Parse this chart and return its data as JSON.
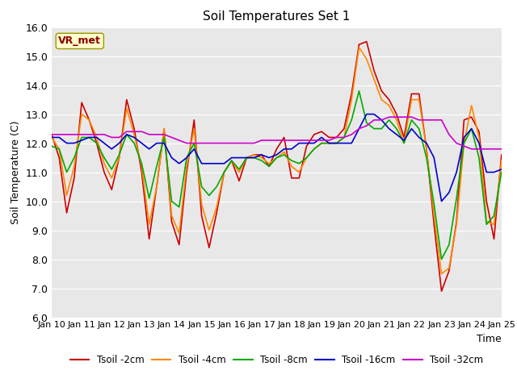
{
  "title": "Soil Temperatures Set 1",
  "xlabel": "Time",
  "ylabel": "Soil Temperature (C)",
  "xlim": [
    0,
    15
  ],
  "ylim": [
    6.0,
    16.0
  ],
  "yticks": [
    6.0,
    7.0,
    8.0,
    9.0,
    10.0,
    11.0,
    12.0,
    13.0,
    14.0,
    15.0,
    16.0
  ],
  "xtick_labels": [
    "Jan 10",
    "Jan 11",
    "Jan 12",
    "Jan 13",
    "Jan 14",
    "Jan 15",
    "Jan 16",
    "Jan 17",
    "Jan 18",
    "Jan 19",
    "Jan 20",
    "Jan 21",
    "Jan 22",
    "Jan 23",
    "Jan 24",
    "Jan 25"
  ],
  "bg_color": "#e8e8e8",
  "legend_label": "VR_met",
  "series": {
    "Tsoil -2cm": {
      "color": "#cc0000",
      "x": [
        0,
        0.25,
        0.5,
        0.75,
        1.0,
        1.25,
        1.5,
        1.75,
        2.0,
        2.25,
        2.5,
        2.75,
        3.0,
        3.25,
        3.5,
        3.75,
        4.0,
        4.25,
        4.5,
        4.75,
        5.0,
        5.25,
        5.5,
        5.75,
        6.0,
        6.25,
        6.5,
        6.75,
        7.0,
        7.25,
        7.5,
        7.75,
        8.0,
        8.25,
        8.5,
        8.75,
        9.0,
        9.25,
        9.5,
        9.75,
        10.0,
        10.25,
        10.5,
        10.75,
        11.0,
        11.25,
        11.5,
        11.75,
        12.0,
        12.25,
        12.5,
        12.75,
        13.0,
        13.25,
        13.5,
        13.75,
        14.0,
        14.25,
        14.5,
        14.75,
        15.0
      ],
      "y": [
        12.3,
        11.5,
        9.6,
        10.8,
        13.4,
        12.8,
        12.0,
        11.0,
        10.4,
        11.5,
        13.5,
        12.5,
        11.0,
        8.7,
        10.5,
        12.5,
        9.3,
        8.5,
        11.0,
        12.8,
        9.5,
        8.4,
        9.6,
        11.0,
        11.4,
        10.7,
        11.5,
        11.6,
        11.6,
        11.2,
        11.8,
        12.2,
        10.8,
        10.8,
        11.9,
        12.3,
        12.4,
        12.2,
        12.2,
        12.5,
        13.7,
        15.4,
        15.5,
        14.5,
        13.8,
        13.5,
        13.0,
        12.2,
        13.7,
        13.7,
        11.8,
        9.2,
        6.9,
        7.6,
        9.3,
        12.8,
        12.9,
        12.4,
        10.0,
        8.7,
        11.6
      ]
    },
    "Tsoil -4cm": {
      "color": "#ff8800",
      "x": [
        0,
        0.25,
        0.5,
        0.75,
        1.0,
        1.25,
        1.5,
        1.75,
        2.0,
        2.25,
        2.5,
        2.75,
        3.0,
        3.25,
        3.5,
        3.75,
        4.0,
        4.25,
        4.5,
        4.75,
        5.0,
        5.25,
        5.5,
        5.75,
        6.0,
        6.25,
        6.5,
        6.75,
        7.0,
        7.25,
        7.5,
        7.75,
        8.0,
        8.25,
        8.5,
        8.75,
        9.0,
        9.25,
        9.5,
        9.75,
        10.0,
        10.25,
        10.5,
        10.75,
        11.0,
        11.25,
        11.5,
        11.75,
        12.0,
        12.25,
        12.5,
        12.75,
        13.0,
        13.25,
        13.5,
        13.75,
        14.0,
        14.25,
        14.5,
        14.75,
        15.0
      ],
      "y": [
        12.2,
        11.8,
        10.2,
        11.2,
        13.0,
        12.8,
        12.2,
        11.3,
        10.8,
        11.5,
        13.2,
        12.3,
        11.2,
        9.2,
        10.5,
        12.5,
        9.5,
        8.9,
        11.2,
        12.5,
        9.9,
        9.0,
        9.8,
        11.0,
        11.4,
        11.0,
        11.5,
        11.6,
        11.5,
        11.3,
        11.5,
        11.7,
        11.2,
        11.0,
        11.5,
        11.8,
        12.0,
        12.0,
        12.0,
        12.2,
        13.5,
        15.3,
        14.9,
        14.2,
        13.5,
        13.3,
        12.8,
        12.0,
        13.5,
        13.5,
        11.8,
        9.5,
        7.5,
        7.7,
        9.2,
        12.0,
        13.3,
        12.2,
        9.3,
        9.2,
        11.4
      ]
    },
    "Tsoil -8cm": {
      "color": "#00aa00",
      "x": [
        0,
        0.25,
        0.5,
        0.75,
        1.0,
        1.25,
        1.5,
        1.75,
        2.0,
        2.25,
        2.5,
        2.75,
        3.0,
        3.25,
        3.5,
        3.75,
        4.0,
        4.25,
        4.5,
        4.75,
        5.0,
        5.25,
        5.5,
        5.75,
        6.0,
        6.25,
        6.5,
        6.75,
        7.0,
        7.25,
        7.5,
        7.75,
        8.0,
        8.25,
        8.5,
        8.75,
        9.0,
        9.25,
        9.5,
        9.75,
        10.0,
        10.25,
        10.5,
        10.75,
        11.0,
        11.25,
        11.5,
        11.75,
        12.0,
        12.25,
        12.5,
        12.75,
        13.0,
        13.25,
        13.5,
        13.75,
        14.0,
        14.25,
        14.5,
        14.75,
        15.0
      ],
      "y": [
        11.9,
        11.8,
        11.0,
        11.5,
        12.2,
        12.2,
        12.0,
        11.5,
        11.1,
        11.6,
        12.3,
        12.0,
        11.3,
        10.1,
        11.2,
        12.2,
        10.0,
        9.8,
        11.5,
        12.0,
        10.5,
        10.2,
        10.5,
        11.0,
        11.4,
        11.1,
        11.5,
        11.5,
        11.4,
        11.2,
        11.5,
        11.6,
        11.4,
        11.3,
        11.5,
        11.8,
        12.0,
        12.0,
        12.0,
        12.2,
        12.8,
        13.8,
        12.7,
        12.5,
        12.5,
        12.8,
        12.5,
        12.0,
        12.8,
        12.5,
        11.5,
        9.9,
        8.0,
        8.5,
        10.1,
        12.0,
        12.5,
        11.5,
        9.2,
        9.5,
        11.0
      ]
    },
    "Tsoil -16cm": {
      "color": "#0000cc",
      "x": [
        0,
        0.25,
        0.5,
        0.75,
        1.0,
        1.25,
        1.5,
        1.75,
        2.0,
        2.25,
        2.5,
        2.75,
        3.0,
        3.25,
        3.5,
        3.75,
        4.0,
        4.25,
        4.5,
        4.75,
        5.0,
        5.25,
        5.5,
        5.75,
        6.0,
        6.25,
        6.5,
        6.75,
        7.0,
        7.25,
        7.5,
        7.75,
        8.0,
        8.25,
        8.5,
        8.75,
        9.0,
        9.25,
        9.5,
        9.75,
        10.0,
        10.25,
        10.5,
        10.75,
        11.0,
        11.25,
        11.5,
        11.75,
        12.0,
        12.25,
        12.5,
        12.75,
        13.0,
        13.25,
        13.5,
        13.75,
        14.0,
        14.25,
        14.5,
        14.75,
        15.0
      ],
      "y": [
        12.2,
        12.2,
        12.0,
        12.0,
        12.1,
        12.2,
        12.2,
        12.0,
        11.8,
        12.0,
        12.3,
        12.2,
        12.0,
        11.8,
        12.0,
        12.0,
        11.5,
        11.3,
        11.5,
        11.8,
        11.3,
        11.3,
        11.3,
        11.3,
        11.5,
        11.5,
        11.5,
        11.5,
        11.6,
        11.5,
        11.6,
        11.8,
        11.8,
        12.0,
        12.0,
        12.0,
        12.2,
        12.0,
        12.0,
        12.0,
        12.0,
        12.5,
        13.0,
        13.0,
        12.8,
        12.5,
        12.3,
        12.1,
        12.5,
        12.2,
        12.0,
        11.5,
        10.0,
        10.3,
        11.0,
        12.2,
        12.5,
        12.0,
        11.0,
        11.0,
        11.1
      ]
    },
    "Tsoil -32cm": {
      "color": "#cc00cc",
      "x": [
        0,
        0.25,
        0.5,
        0.75,
        1.0,
        1.25,
        1.5,
        1.75,
        2.0,
        2.25,
        2.5,
        2.75,
        3.0,
        3.25,
        3.5,
        3.75,
        4.0,
        4.25,
        4.5,
        4.75,
        5.0,
        5.25,
        5.5,
        5.75,
        6.0,
        6.25,
        6.5,
        6.75,
        7.0,
        7.25,
        7.5,
        7.75,
        8.0,
        8.25,
        8.5,
        8.75,
        9.0,
        9.25,
        9.5,
        9.75,
        10.0,
        10.25,
        10.5,
        10.75,
        11.0,
        11.25,
        11.5,
        11.75,
        12.0,
        12.25,
        12.5,
        12.75,
        13.0,
        13.25,
        13.5,
        13.75,
        14.0,
        14.25,
        14.5,
        14.75,
        15.0
      ],
      "y": [
        12.3,
        12.3,
        12.3,
        12.3,
        12.3,
        12.3,
        12.3,
        12.3,
        12.2,
        12.2,
        12.4,
        12.4,
        12.4,
        12.3,
        12.3,
        12.3,
        12.2,
        12.1,
        12.0,
        12.0,
        12.0,
        12.0,
        12.0,
        12.0,
        12.0,
        12.0,
        12.0,
        12.0,
        12.1,
        12.1,
        12.1,
        12.1,
        12.1,
        12.1,
        12.1,
        12.1,
        12.1,
        12.1,
        12.2,
        12.2,
        12.3,
        12.5,
        12.6,
        12.8,
        12.8,
        12.9,
        12.9,
        12.9,
        12.9,
        12.8,
        12.8,
        12.8,
        12.8,
        12.3,
        12.0,
        11.9,
        11.8,
        11.8,
        11.8,
        11.8,
        11.8
      ]
    }
  }
}
